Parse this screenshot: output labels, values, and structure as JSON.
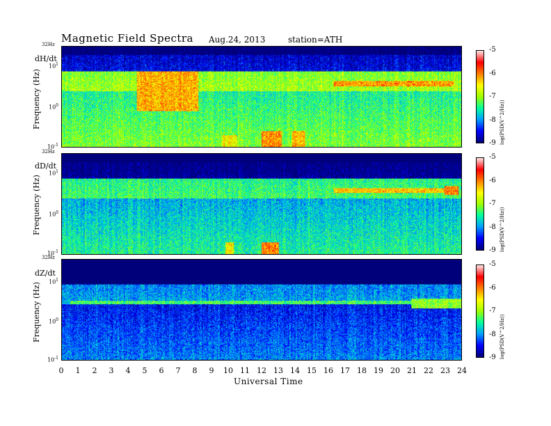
{
  "header": {
    "title": "Magnetic  Field  Spectra",
    "date": "Aug.24, 2013",
    "station": "station=ATH"
  },
  "chart_data": {
    "type": "heatmap",
    "xlabel": "Universal Time",
    "ylabel": "Frequency  (Hz)",
    "xlim": [
      0,
      24
    ],
    "x_ticks": [
      "0",
      "1",
      "2",
      "3",
      "4",
      "5",
      "6",
      "7",
      "8",
      "9",
      "10",
      "11",
      "12",
      "13",
      "14",
      "15",
      "16",
      "17",
      "18",
      "19",
      "20",
      "21",
      "22",
      "23",
      "24"
    ],
    "y_scale": "log",
    "ylim_hz": [
      0.1,
      32
    ],
    "y_top_label": "32Hz",
    "y_ticks": [
      "10",
      "10",
      "10"
    ],
    "y_tick_exponents": [
      "-1",
      "0",
      "1"
    ],
    "colorbar": {
      "label": "log(PSD(V^2/Hz))",
      "ticks": [
        "-5",
        "-6",
        "-7",
        "-8",
        "-9"
      ],
      "range": [
        -9,
        -5
      ],
      "colors": [
        "#00007a",
        "#0000ff",
        "#00a0ff",
        "#00ffa0",
        "#a0ff00",
        "#ffff00",
        "#ff8000",
        "#ff0000",
        "#ffe0e0"
      ]
    },
    "panels": [
      {
        "name": "dH/dt",
        "base_level": -7.3,
        "features": [
          {
            "ut_start": 4.5,
            "ut_end": 8.2,
            "f_low": 0.8,
            "f_high": 8,
            "level": -6.2
          },
          {
            "ut_start": 16.3,
            "ut_end": 23.5,
            "f_low": 3.3,
            "f_high": 4.5,
            "level": -6.1
          },
          {
            "ut_start": 12.0,
            "ut_end": 13.2,
            "f_low": 0.1,
            "f_high": 0.25,
            "level": -6.0
          },
          {
            "ut_start": 13.8,
            "ut_end": 14.6,
            "f_low": 0.1,
            "f_high": 0.25,
            "level": -6.2
          },
          {
            "ut_start": 9.6,
            "ut_end": 10.5,
            "f_low": 0.1,
            "f_high": 0.2,
            "level": -6.5
          }
        ]
      },
      {
        "name": "dD/dt",
        "base_level": -7.7,
        "features": [
          {
            "ut_start": 16.3,
            "ut_end": 23.0,
            "f_low": 3.4,
            "f_high": 4.5,
            "level": -6.3
          },
          {
            "ut_start": 23.0,
            "ut_end": 23.8,
            "f_low": 3.0,
            "f_high": 5.0,
            "level": -6.0
          },
          {
            "ut_start": 12.0,
            "ut_end": 13.0,
            "f_low": 0.1,
            "f_high": 0.2,
            "level": -6.0
          },
          {
            "ut_start": 9.8,
            "ut_end": 10.3,
            "f_low": 0.1,
            "f_high": 0.2,
            "level": -6.5
          }
        ]
      },
      {
        "name": "dZ/dt",
        "base_level": -8.3,
        "features": [
          {
            "ut_start": 0.5,
            "ut_end": 24.0,
            "f_low": 2.5,
            "f_high": 3.0,
            "level": -7.3
          },
          {
            "ut_start": 21.0,
            "ut_end": 24.0,
            "f_low": 2.0,
            "f_high": 3.5,
            "level": -7.0
          }
        ]
      }
    ]
  }
}
